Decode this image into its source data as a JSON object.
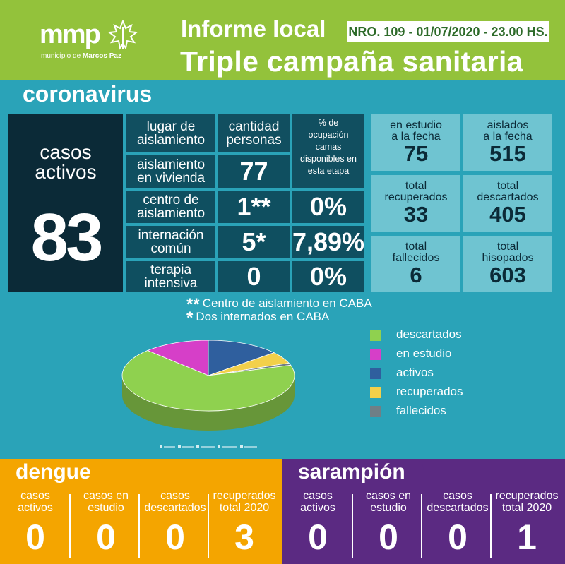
{
  "header": {
    "logo_text": "mmp",
    "logo_sub_prefix": "municipio de ",
    "logo_sub_bold": "Marcos Paz",
    "title1": "Informe local",
    "badge": "NRO. 109 - 01/07/2020 - 23.00 HS.",
    "title2": "Triple campaña sanitaria",
    "colors": {
      "green": "#93c23b",
      "teal": "#2aa3b8",
      "navy": "#0b2a37"
    }
  },
  "coronavirus": {
    "section_title": "coronavirus",
    "active": {
      "label1": "casos",
      "label2": "activos",
      "value": "83"
    },
    "table": {
      "headers": [
        "lugar de aislamiento",
        "cantidad personas"
      ],
      "header_col1_lines": [
        "lugar de",
        "aislamiento"
      ],
      "header_col2_lines": [
        "cantidad",
        "personas"
      ],
      "occupancy_header": [
        "% de",
        "ocupación",
        "camas",
        "disponibles en",
        "esta etapa"
      ],
      "rows": [
        {
          "lines": [
            "aislamiento",
            "en vivienda"
          ],
          "count": "77",
          "pct": ""
        },
        {
          "lines": [
            "centro de",
            "aislamiento"
          ],
          "count": "1**",
          "pct": "0%"
        },
        {
          "lines": [
            "internación",
            "común"
          ],
          "count": "5*",
          "pct": "7,89%"
        },
        {
          "lines": [
            "terapia",
            "intensiva"
          ],
          "count": "0",
          "pct": "0%"
        }
      ]
    },
    "stats": [
      {
        "lines": [
          "en estudio",
          "a la fecha"
        ],
        "value": "75"
      },
      {
        "lines": [
          "aislados",
          "a la fecha"
        ],
        "value": "515"
      },
      {
        "lines": [
          "total",
          "recuperados"
        ],
        "value": "33"
      },
      {
        "lines": [
          "total",
          "descartados"
        ],
        "value": "405"
      },
      {
        "lines": [
          "total",
          "fallecidos"
        ],
        "value": "6"
      },
      {
        "lines": [
          "total",
          "hisopados"
        ],
        "value": "603"
      }
    ],
    "notes": [
      {
        "star": "**",
        "text": "Centro de aislamiento en CABA"
      },
      {
        "star": "*",
        "text": "Dos internados en CABA"
      }
    ]
  },
  "chart_data": {
    "type": "pie",
    "categories": [
      "descartados",
      "en estudio",
      "activos",
      "recuperados",
      "fallecidos"
    ],
    "values": [
      405,
      75,
      83,
      33,
      6
    ],
    "colors": [
      "#8fd14f",
      "#d63fc8",
      "#2f5f9e",
      "#f2d04a",
      "#6f7f86"
    ],
    "legend_position": "right"
  },
  "dengue": {
    "title": "dengue",
    "color": "#f4a500",
    "stats": [
      {
        "lines": [
          "casos",
          "activos"
        ],
        "value": "0"
      },
      {
        "lines": [
          "casos en",
          "estudio"
        ],
        "value": "0"
      },
      {
        "lines": [
          "casos",
          "descartados"
        ],
        "value": "0"
      },
      {
        "lines": [
          "recuperados",
          "total 2020"
        ],
        "value": "3"
      }
    ]
  },
  "sarampion": {
    "title": "sarampión",
    "color": "#5b2a82",
    "stats": [
      {
        "lines": [
          "casos",
          "activos"
        ],
        "value": "0"
      },
      {
        "lines": [
          "casos en",
          "estudio"
        ],
        "value": "0"
      },
      {
        "lines": [
          "casos",
          "descartados"
        ],
        "value": "0"
      },
      {
        "lines": [
          "recuperados",
          "total 2020"
        ],
        "value": "1"
      }
    ]
  }
}
